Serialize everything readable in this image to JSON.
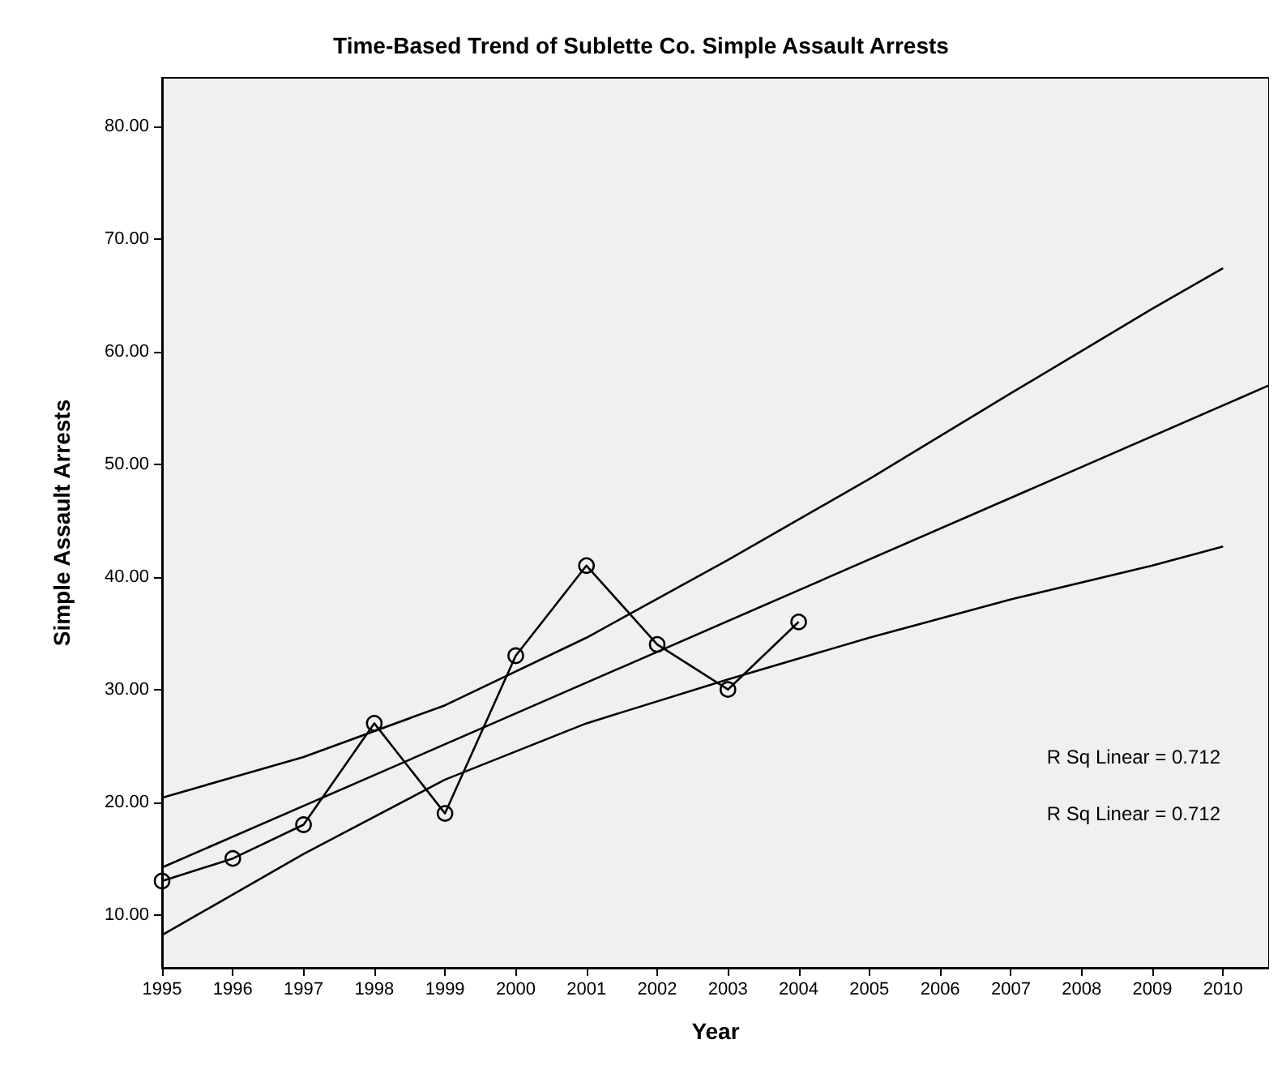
{
  "chart_data": {
    "type": "line",
    "title": "Time-Based Trend of Sublette Co. Simple Assault Arrests",
    "xlabel": "Year",
    "ylabel": "Simple Assault Arrests",
    "xlim": [
      1995,
      2010.65
    ],
    "xticks": [
      1995,
      1996,
      1997,
      1998,
      1999,
      2000,
      2001,
      2002,
      2003,
      2004,
      2005,
      2006,
      2007,
      2008,
      2009,
      2010
    ],
    "ylim": [
      5.3,
      84.3
    ],
    "yticks": [
      {
        "value": 10,
        "label": "10.00"
      },
      {
        "value": 20,
        "label": "20.00"
      },
      {
        "value": 30,
        "label": "30.00"
      },
      {
        "value": 40,
        "label": "40.00"
      },
      {
        "value": 50,
        "label": "50.00"
      },
      {
        "value": 60,
        "label": "60.00"
      },
      {
        "value": 70,
        "label": "70.00"
      },
      {
        "value": 80,
        "label": "80.00"
      }
    ],
    "grid": false,
    "series": [
      {
        "color": "#000000",
        "marker": "circle",
        "x": [
          1995,
          1996,
          1997,
          1998,
          1999,
          2000,
          2001,
          2002,
          2003,
          2004
        ],
        "values": [
          13,
          15,
          18,
          27,
          19,
          33,
          41,
          34,
          30,
          36
        ]
      },
      {
        "color": "#000000",
        "marker": "none",
        "x": [
          1995,
          2010.65
        ],
        "values": [
          14.2,
          57.0
        ]
      },
      {
        "color": "#000000",
        "marker": "none",
        "x": [
          1995,
          1997,
          1999,
          2001,
          2003,
          2005,
          2007,
          2009,
          2010
        ],
        "values": [
          20.4,
          24.0,
          28.6,
          34.6,
          41.5,
          48.7,
          56.3,
          63.8,
          67.4
        ]
      },
      {
        "color": "#000000",
        "marker": "none",
        "x": [
          1995,
          1997,
          1999,
          2001,
          2003,
          2005,
          2007,
          2009,
          2010
        ],
        "values": [
          8.2,
          15.4,
          22.0,
          27.0,
          30.9,
          34.6,
          38.0,
          41.0,
          42.7
        ]
      }
    ],
    "annotations": [
      "R Sq Linear = 0.712",
      "R Sq Linear = 0.712"
    ]
  }
}
